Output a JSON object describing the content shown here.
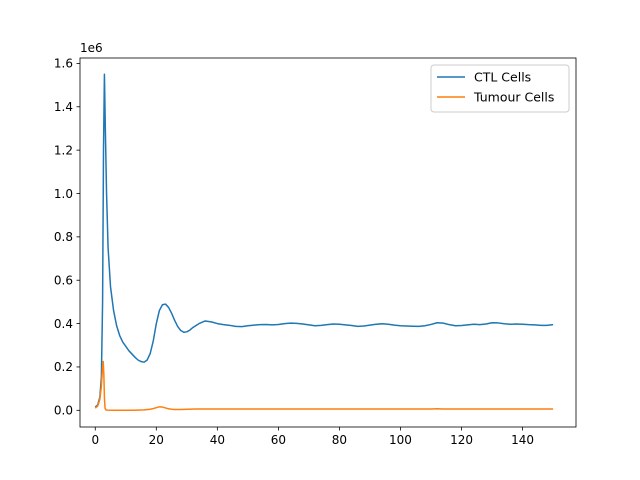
{
  "chart_data": {
    "type": "line",
    "title": "",
    "xlabel": "",
    "ylabel": "",
    "y_offset_text": "1e6",
    "xlim": [
      -5,
      157.5
    ],
    "ylim": [
      -0.077,
      1.625
    ],
    "x_ticks": [
      0,
      20,
      40,
      60,
      80,
      100,
      120,
      140
    ],
    "x_tick_labels": [
      "0",
      "20",
      "40",
      "60",
      "80",
      "100",
      "120",
      "140"
    ],
    "y_ticks": [
      0.0,
      0.2,
      0.4,
      0.6,
      0.8,
      1.0,
      1.2,
      1.4,
      1.6
    ],
    "y_tick_labels": [
      "0.0",
      "0.2",
      "0.4",
      "0.6",
      "0.8",
      "1.0",
      "1.2",
      "1.4",
      "1.6"
    ],
    "grid": false,
    "legend_position": "top-right",
    "series": [
      {
        "name": "CTL Cells",
        "color": "#1f77b4",
        "x": [
          0,
          0.8,
          1.5,
          2.0,
          2.4,
          2.7,
          3.0,
          3.3,
          3.7,
          4.2,
          5,
          6,
          7,
          8,
          9,
          10,
          11,
          12,
          13,
          14,
          15,
          16,
          17,
          18,
          19,
          20,
          21,
          22,
          23,
          24,
          25,
          26,
          27,
          28,
          29,
          30,
          31,
          32,
          34,
          36,
          38,
          40,
          42,
          44,
          46,
          48,
          50,
          52,
          54,
          56,
          58,
          60,
          62,
          64,
          66,
          68,
          70,
          72,
          74,
          76,
          78,
          80,
          82,
          84,
          86,
          88,
          90,
          92,
          94,
          96,
          98,
          100,
          102,
          104,
          106,
          108,
          110,
          112,
          114,
          116,
          118,
          120,
          122,
          124,
          126,
          128,
          130,
          132,
          134,
          136,
          138,
          140,
          142,
          144,
          146,
          148,
          150
        ],
        "values": [
          0.015,
          0.025,
          0.06,
          0.15,
          0.5,
          1.2,
          1.55,
          1.3,
          1.0,
          0.75,
          0.57,
          0.46,
          0.39,
          0.345,
          0.315,
          0.295,
          0.275,
          0.26,
          0.245,
          0.232,
          0.225,
          0.222,
          0.232,
          0.262,
          0.32,
          0.4,
          0.46,
          0.487,
          0.49,
          0.475,
          0.448,
          0.415,
          0.387,
          0.368,
          0.36,
          0.362,
          0.37,
          0.382,
          0.4,
          0.412,
          0.408,
          0.4,
          0.395,
          0.392,
          0.387,
          0.386,
          0.39,
          0.393,
          0.395,
          0.396,
          0.394,
          0.396,
          0.4,
          0.402,
          0.401,
          0.398,
          0.394,
          0.39,
          0.392,
          0.395,
          0.398,
          0.397,
          0.394,
          0.391,
          0.387,
          0.389,
          0.393,
          0.397,
          0.399,
          0.397,
          0.393,
          0.39,
          0.389,
          0.388,
          0.387,
          0.39,
          0.396,
          0.404,
          0.402,
          0.395,
          0.39,
          0.391,
          0.394,
          0.397,
          0.395,
          0.398,
          0.404,
          0.403,
          0.399,
          0.397,
          0.398,
          0.397,
          0.395,
          0.394,
          0.392,
          0.392,
          0.395
        ]
      },
      {
        "name": "Tumour Cells",
        "color": "#ff7f0e",
        "x": [
          0,
          0.8,
          1.5,
          2.0,
          2.4,
          2.6,
          2.8,
          3.0,
          3.2,
          3.5,
          4,
          6,
          8,
          10,
          12,
          14,
          16,
          18,
          19,
          20,
          21,
          22,
          23,
          24,
          25,
          26,
          28,
          30,
          33,
          36,
          40,
          45,
          50,
          60,
          70,
          80,
          90,
          100,
          110,
          112,
          114,
          120,
          130,
          140,
          150
        ],
        "values": [
          0.01,
          0.02,
          0.05,
          0.11,
          0.2,
          0.225,
          0.17,
          0.06,
          0.01,
          0.002,
          0.001,
          0.0005,
          0.0003,
          0.0003,
          0.0005,
          0.001,
          0.002,
          0.005,
          0.008,
          0.012,
          0.016,
          0.015,
          0.011,
          0.007,
          0.005,
          0.004,
          0.004,
          0.005,
          0.006,
          0.006,
          0.006,
          0.006,
          0.006,
          0.006,
          0.006,
          0.006,
          0.006,
          0.006,
          0.006,
          0.007,
          0.006,
          0.006,
          0.006,
          0.006,
          0.006
        ]
      }
    ]
  }
}
